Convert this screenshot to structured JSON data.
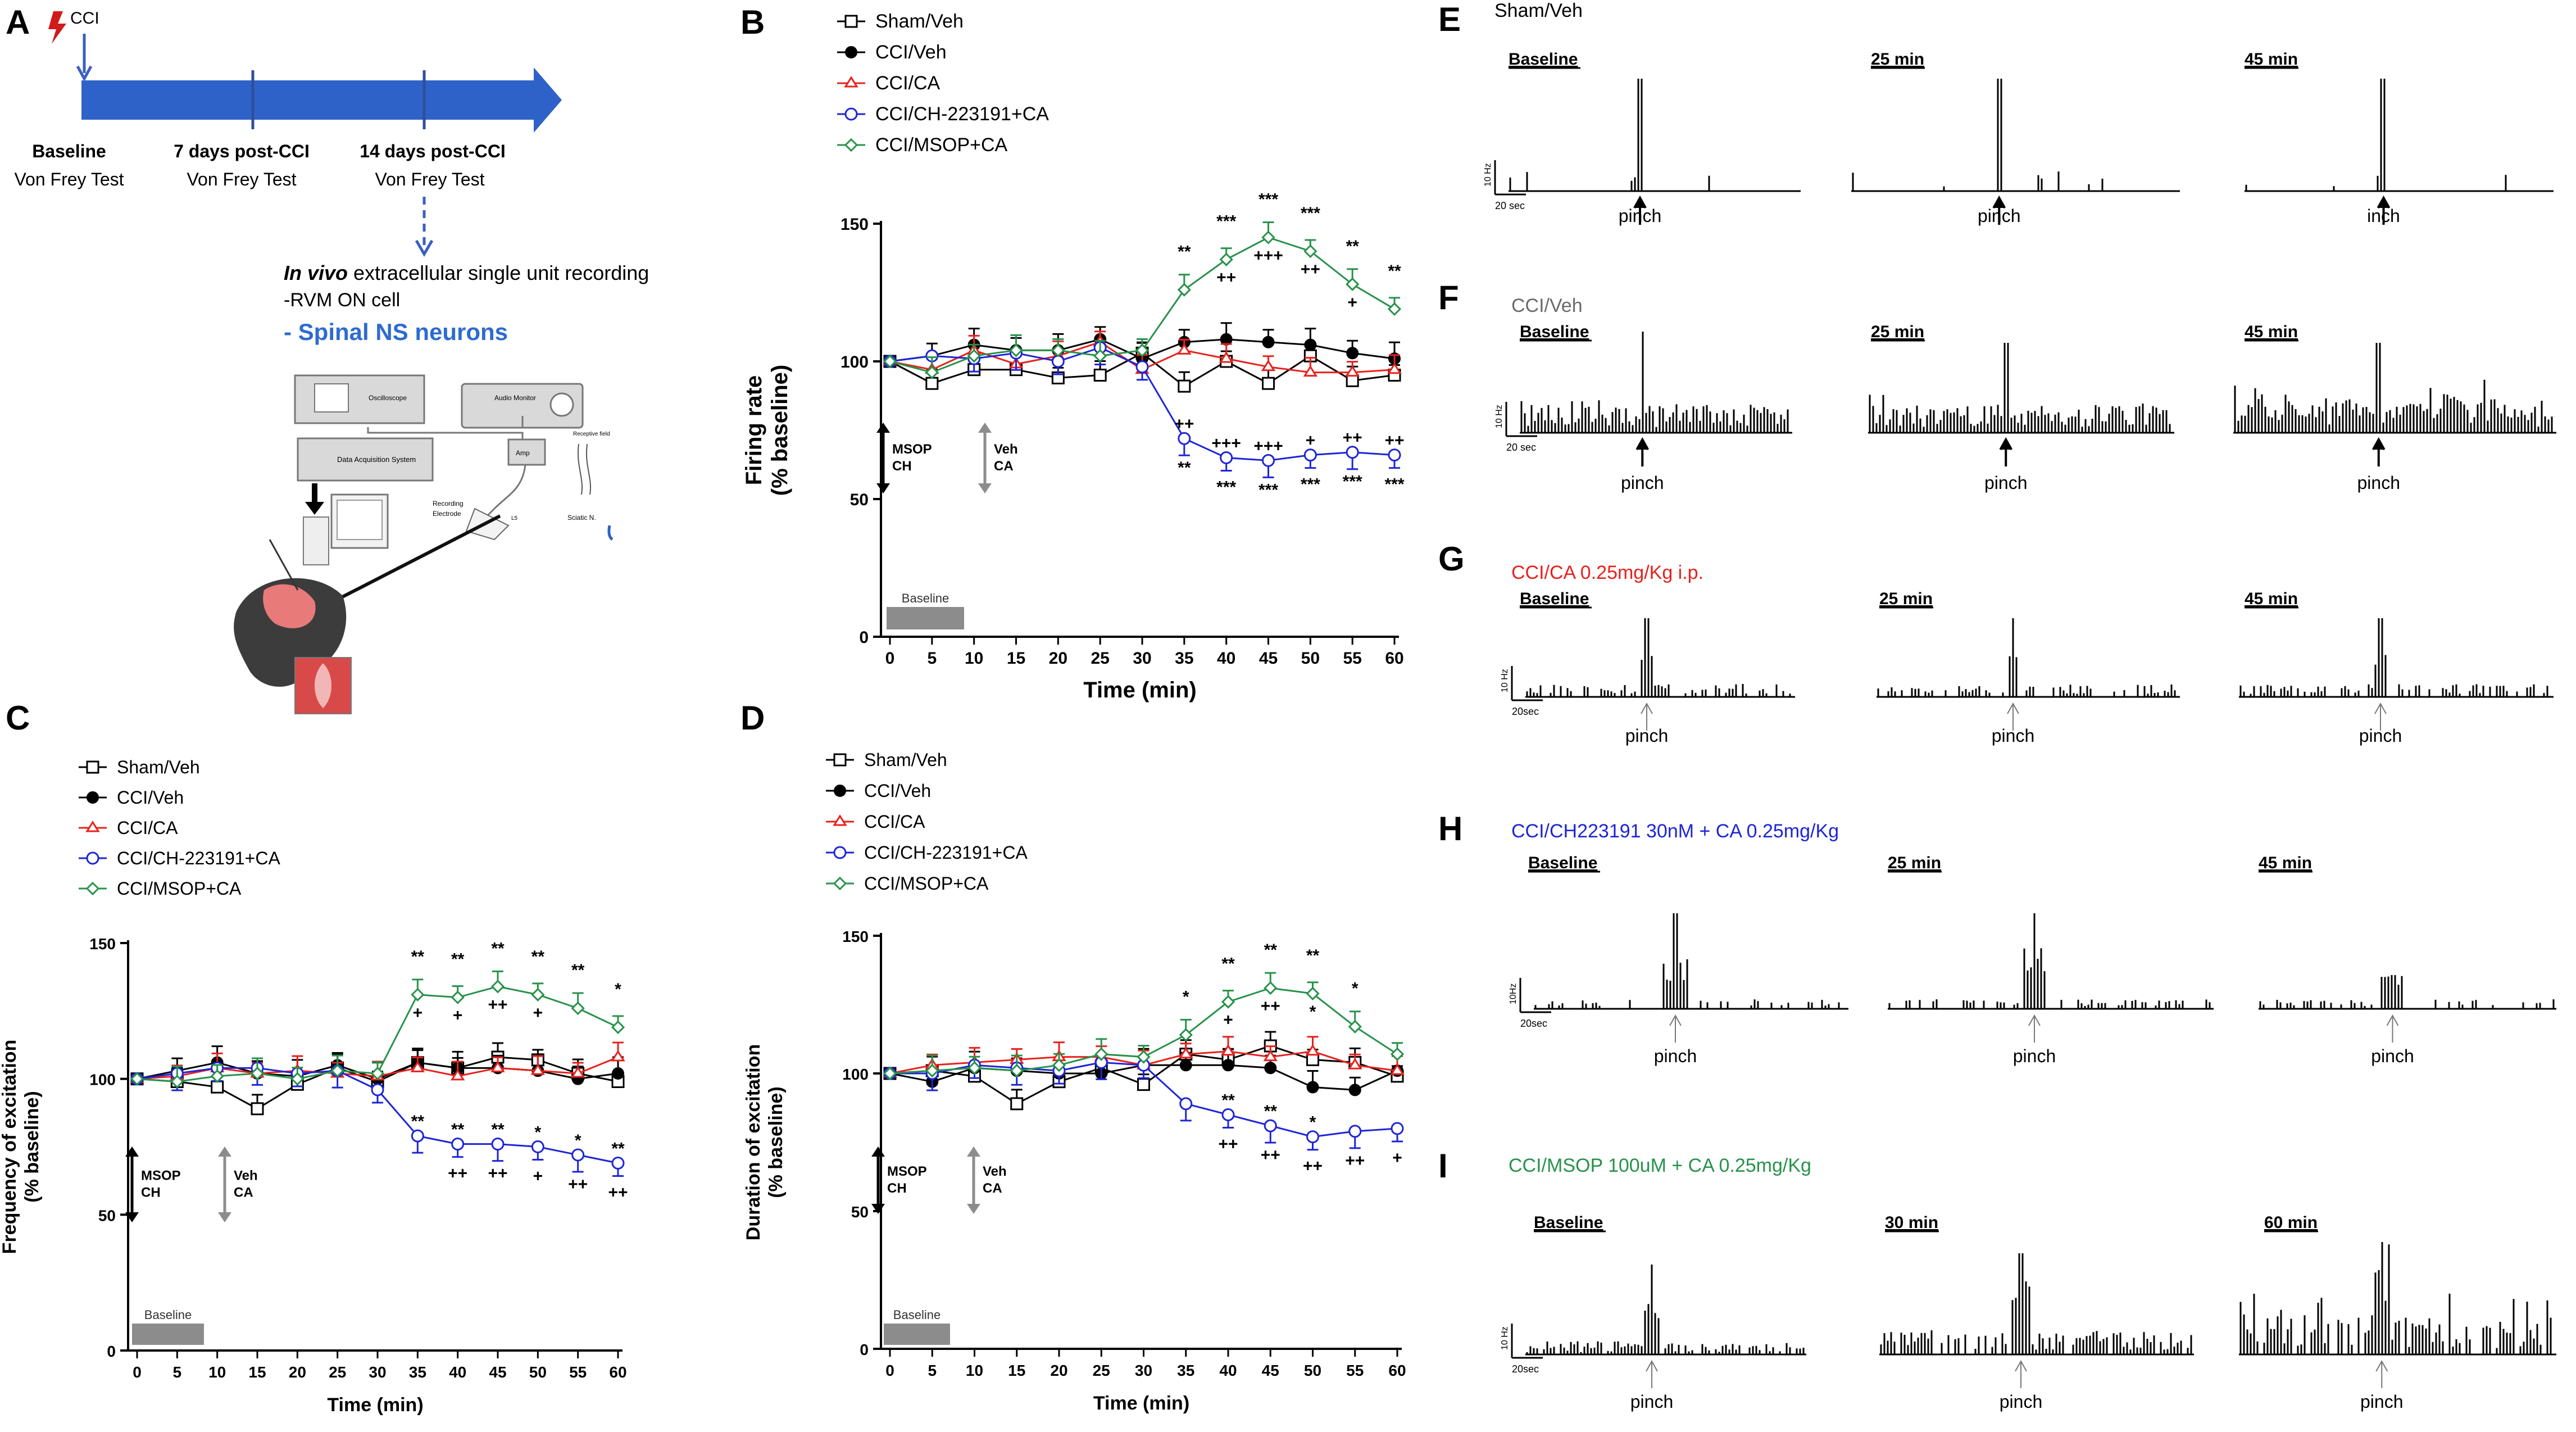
{
  "panel_labels": {
    "A": "A",
    "B": "B",
    "C": "C",
    "D": "D",
    "E": "E",
    "F": "F",
    "G": "G",
    "H": "H",
    "I": "I"
  },
  "colors": {
    "sham": "#000000",
    "cciveh": "#000000",
    "cca": "#e8211d",
    "ch": "#1d25d6",
    "msop": "#27924a",
    "arrow": "#3a5fbf",
    "blue_text": "#2e6bd1",
    "gray": "#8c8c8c"
  },
  "panelA": {
    "cci": "CCI",
    "timeline": [
      {
        "title": "Baseline",
        "sub": "Von Frey Test"
      },
      {
        "title": "7 days post-CCI",
        "sub": "Von Frey Test"
      },
      {
        "title": "14 days post-CCI",
        "sub": "Von Frey Test"
      }
    ],
    "rec_prefix": "In vivo",
    "rec_rest": " extracellular single unit recording",
    "rvm": "-RVM ON cell",
    "spinal": "- Spinal NS neurons",
    "setup": {
      "oscilloscope": "Oscilloscope",
      "audio": "Audio Monitor",
      "daq": "Data Acquisition System",
      "amp": "Amp",
      "rec_unit": "Receptive field",
      "recording": "Recording",
      "electrode": "Electrode",
      "sciatic": "Sciatic N.",
      "ls": "L5"
    }
  },
  "legend": [
    {
      "key": "sham",
      "label": "Sham/Veh",
      "marker": "square-open"
    },
    {
      "key": "cciveh",
      "label": "CCI/Veh",
      "marker": "circle-filled"
    },
    {
      "key": "cca",
      "label": "CCI/CA",
      "marker": "triangle-open"
    },
    {
      "key": "ch",
      "label": "CCI/CH-223191+CA",
      "marker": "circle-open"
    },
    {
      "key": "msop",
      "label": "CCI/MSOP+CA",
      "marker": "diamond-open"
    }
  ],
  "arrow_labels": {
    "msop": "MSOP",
    "ch": "CH",
    "veh": "Veh",
    "ca": "CA",
    "baseline": "Baseline"
  },
  "chart_data": [
    {
      "panel": "B",
      "type": "line",
      "xlabel": "Time (min)",
      "ylabel": "Firing rate (% baseline)",
      "ylim": [
        0,
        150
      ],
      "yticks": [
        0,
        50,
        100,
        150
      ],
      "x": [
        0,
        5,
        10,
        15,
        20,
        25,
        30,
        35,
        40,
        45,
        50,
        55,
        60
      ],
      "series": [
        {
          "name": "Sham/Veh",
          "values": [
            100,
            92,
            97,
            97,
            94,
            95,
            103,
            91,
            100,
            92,
            102,
            93,
            95
          ]
        },
        {
          "name": "CCI/Veh",
          "values": [
            100,
            102,
            106,
            104,
            104,
            108,
            101,
            107,
            108,
            107,
            106,
            103,
            101
          ]
        },
        {
          "name": "CCI/CA",
          "values": [
            100,
            97,
            104,
            99,
            102,
            107,
            97,
            104,
            101,
            98,
            96,
            96,
            97
          ]
        },
        {
          "name": "CCI/CH-223191+CA",
          "values": [
            100,
            102,
            101,
            103,
            100,
            105,
            98,
            72,
            65,
            64,
            66,
            67,
            66
          ]
        },
        {
          "name": "CCI/MSOP+CA",
          "values": [
            100,
            96,
            102,
            104,
            104,
            102,
            104,
            126,
            137,
            145,
            140,
            128,
            119
          ]
        }
      ],
      "upper": {
        "x": [
          35,
          40,
          45,
          50,
          55,
          60
        ],
        "top": [
          "**",
          "***",
          "***",
          "***",
          "**",
          "**"
        ],
        "bottom": [
          "",
          "++",
          "+++",
          "++",
          "+",
          ""
        ]
      },
      "lower": {
        "x": [
          35,
          40,
          45,
          50,
          55,
          60
        ],
        "top": [
          "++",
          "+++",
          "+++",
          "+",
          "++",
          "++"
        ],
        "bottom": [
          "**",
          "***",
          "***",
          "***",
          "***",
          "***"
        ]
      }
    },
    {
      "panel": "C",
      "type": "line",
      "xlabel": "Time (min)",
      "ylabel": "Frequency of excitation (% baseline)",
      "ylim": [
        0,
        150
      ],
      "yticks": [
        0,
        50,
        100,
        150
      ],
      "x": [
        0,
        5,
        10,
        15,
        20,
        25,
        30,
        35,
        40,
        45,
        50,
        55,
        60
      ],
      "series": [
        {
          "name": "Sham/Veh",
          "values": [
            100,
            99,
            97,
            89,
            98,
            104,
            99,
            106,
            104,
            108,
            107,
            102,
            99
          ]
        },
        {
          "name": "CCI/Veh",
          "values": [
            100,
            103,
            106,
            102,
            101,
            105,
            100,
            106,
            104,
            104,
            103,
            100,
            102
          ]
        },
        {
          "name": "CCI/CA",
          "values": [
            100,
            101,
            104,
            102,
            103,
            102,
            101,
            104,
            101,
            104,
            103,
            102,
            108
          ]
        },
        {
          "name": "CCI/CH-223191+CA",
          "values": [
            100,
            102,
            104,
            104,
            102,
            103,
            96,
            79,
            76,
            76,
            75,
            72,
            69
          ]
        },
        {
          "name": "CCI/MSOP+CA",
          "values": [
            100,
            99,
            101,
            102,
            100,
            103,
            102,
            131,
            130,
            134,
            131,
            126,
            119
          ]
        }
      ],
      "upper": {
        "x": [
          35,
          40,
          45,
          50,
          55,
          60
        ],
        "top": [
          "**",
          "**",
          "**",
          "**",
          "**",
          "*"
        ],
        "bottom": [
          "+",
          "+",
          "++",
          "+",
          "",
          ""
        ]
      },
      "lower": {
        "x": [
          35,
          40,
          45,
          50,
          55,
          60
        ],
        "top": [
          "**",
          "**",
          "**",
          "*",
          "*",
          "**"
        ],
        "bottom": [
          "",
          "++",
          "++",
          "+",
          "++",
          "++"
        ]
      }
    },
    {
      "panel": "D",
      "type": "line",
      "xlabel": "Time (min)",
      "ylabel": "Duration of excitation (% baseline)",
      "ylim": [
        0,
        150
      ],
      "yticks": [
        0,
        50,
        100,
        150
      ],
      "x": [
        0,
        5,
        10,
        15,
        20,
        25,
        30,
        35,
        40,
        45,
        50,
        55,
        60
      ],
      "series": [
        {
          "name": "Sham/Veh",
          "values": [
            100,
            101,
            99,
            89,
            97,
            102,
            96,
            107,
            105,
            110,
            105,
            104,
            99
          ]
        },
        {
          "name": "CCI/Veh",
          "values": [
            100,
            97,
            102,
            101,
            100,
            100,
            103,
            103,
            103,
            102,
            95,
            94,
            101
          ]
        },
        {
          "name": "CCI/CA",
          "values": [
            100,
            103,
            104,
            105,
            106,
            106,
            103,
            107,
            108,
            106,
            108,
            103,
            101
          ]
        },
        {
          "name": "CCI/CH-223191+CA",
          "values": [
            100,
            100,
            103,
            102,
            101,
            104,
            103,
            89,
            85,
            81,
            77,
            79,
            80
          ]
        },
        {
          "name": "CCI/MSOP+CA",
          "values": [
            100,
            101,
            102,
            101,
            103,
            107,
            106,
            114,
            126,
            131,
            129,
            117,
            107
          ]
        }
      ],
      "upper": {
        "x": [
          35,
          40,
          45,
          50,
          55,
          60
        ],
        "top": [
          "*",
          "**",
          "**",
          "**",
          "*",
          ""
        ],
        "bottom": [
          "",
          "+",
          "++",
          "*",
          "",
          ""
        ]
      },
      "lower": {
        "x": [
          35,
          40,
          45,
          50,
          55,
          60
        ],
        "top": [
          "",
          "**",
          "**",
          "*",
          "",
          ""
        ],
        "bottom": [
          "",
          "++",
          "++",
          "++",
          "++",
          "+"
        ]
      }
    }
  ],
  "traces": [
    {
      "panel": "E",
      "title": "Sham/Veh",
      "titleColor": "#000000",
      "scale": "10 Hz",
      "time": "20 sec",
      "stim": "pinch",
      "labels": [
        "Baseline",
        "25 min",
        "45 min"
      ],
      "stimTexts": [
        "pinch",
        "pinch",
        "inch"
      ],
      "arrowGray": false,
      "type": "sparse"
    },
    {
      "panel": "F",
      "title": "CCI/Veh",
      "titleColor": "#6a6a6a",
      "scale": "10 Hz",
      "time": "20 sec",
      "stim": "pinch",
      "labels": [
        "Baseline",
        "25 min",
        "45 min"
      ],
      "stimTexts": [
        "pinch",
        "pinch",
        "pinch"
      ],
      "arrowGray": false,
      "type": "dense"
    },
    {
      "panel": "G",
      "title": "CCI/CA 0.25mg/Kg i.p.",
      "titleColor": "#e8211d",
      "scale": "10 Hz",
      "time": "20sec",
      "stim": "pinch",
      "labels": [
        "Baseline",
        "25 min",
        "45 min"
      ],
      "stimTexts": [
        "pinch",
        "pinch",
        "pinch"
      ],
      "arrowGray": true,
      "type": "medium"
    },
    {
      "panel": "H",
      "title": "CCI/CH223191 30nM + CA 0.25mg/Kg",
      "titleColor": "#1d25d6",
      "scale": "10Hz",
      "time": "20sec",
      "stim": "pinch",
      "labels": [
        "Baseline",
        "25 min",
        "45 min"
      ],
      "stimTexts": [
        "pinch",
        "pinch",
        "pinch"
      ],
      "arrowGray": true,
      "type": "sparse2"
    },
    {
      "panel": "I",
      "title": "CCI/MSOP 100uM + CA 0.25mg/Kg",
      "titleColor": "#27924a",
      "scale": "10 Hz",
      "time": "20sec",
      "stim": "pinch",
      "labels": [
        "Baseline",
        "30 min",
        "60 min"
      ],
      "stimTexts": [
        "pinch",
        "pinch",
        "pinch"
      ],
      "arrowGray": true,
      "type": "growing"
    }
  ]
}
